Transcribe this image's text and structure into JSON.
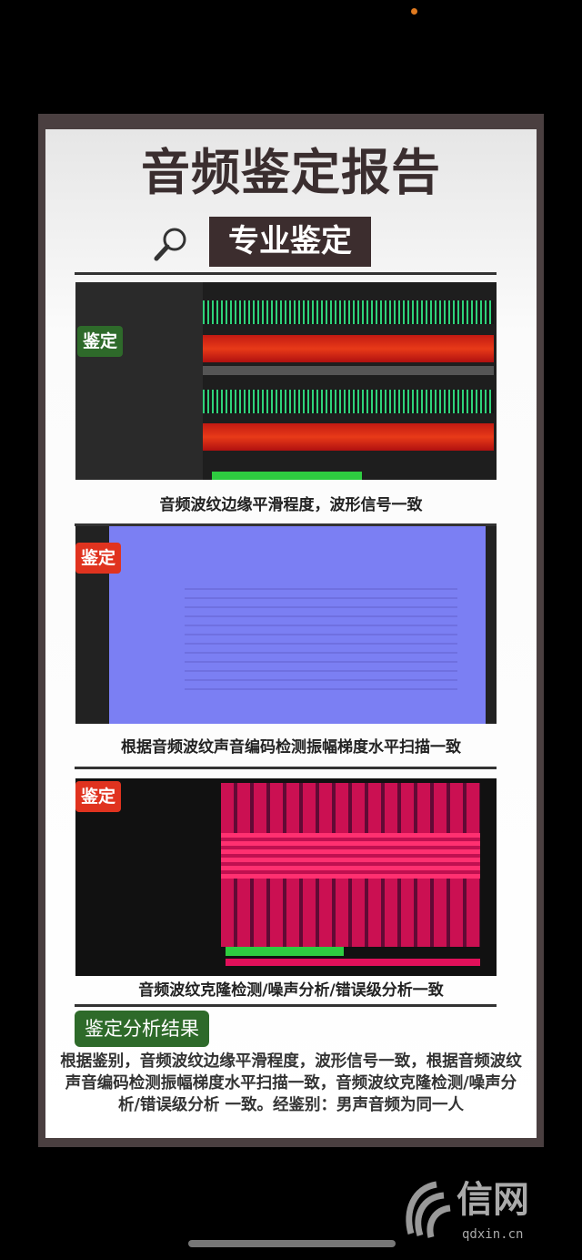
{
  "poster": {
    "title": "音频鉴定报告",
    "subtitle": "专业鉴定",
    "panels": [
      {
        "badge": "鉴定",
        "badge_color": "#2e6a2a",
        "caption": "音频波纹边缘平滑程度，波形信号一致"
      },
      {
        "badge": "鉴定",
        "badge_color": "#e0331f",
        "caption": "根据音频波纹声音编码检测振幅梯度水平扫描一致"
      },
      {
        "badge": "鉴定",
        "badge_color": "#e0331f",
        "caption": "音频波纹克隆检测/噪声分析/错误级分析一致"
      }
    ],
    "result_label": "鉴定分析结果",
    "result_text": "根据鉴别，音频波纹边缘平滑程度，波形信号一致，根据音频波纹声音编码检测振幅梯度水平扫描一致，音频波纹克隆检测/噪声分析/错误级分析 一致。经鉴别：男声音频为同一人"
  },
  "watermark": {
    "name": "信网",
    "domain": "qdxin.cn"
  },
  "colors": {
    "frame": "#4a3f40",
    "title": "#3a2e2f",
    "panel2_bg": "#7b7ff3",
    "panel3_accent": "#e0105a"
  }
}
